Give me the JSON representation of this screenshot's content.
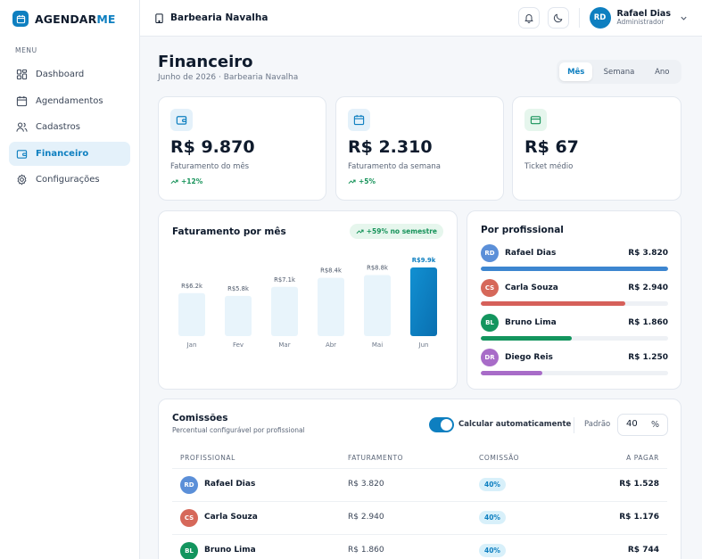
{
  "brand": {
    "name_prefix": "AGENDAR",
    "name_suffix": "ME",
    "color": "#0e7fc0"
  },
  "sidebar": {
    "menu_label": "MENU",
    "items": [
      {
        "label": "Dashboard",
        "icon": "grid-icon"
      },
      {
        "label": "Agendamentos",
        "icon": "calendar-icon"
      },
      {
        "label": "Cadastros",
        "icon": "users-icon"
      },
      {
        "label": "Financeiro",
        "icon": "wallet-icon",
        "active": true
      },
      {
        "label": "Configurações",
        "icon": "gear-icon"
      }
    ]
  },
  "topbar": {
    "shop": "Barbearia Navalha",
    "user": {
      "initials": "RD",
      "name": "Rafael Dias",
      "role": "Administrador"
    }
  },
  "page": {
    "title": "Financeiro",
    "subtitle": "Junho de 2026 · Barbearia Navalha",
    "periods": [
      "Mês",
      "Semana",
      "Ano"
    ],
    "active_period": "Mês"
  },
  "kpis": [
    {
      "value": "R$ 9.870",
      "label": "Faturamento do mês",
      "delta": "+12%",
      "icon": "wallet-icon",
      "icon_bg": "#e4f1fa",
      "icon_color": "#0e7fc0"
    },
    {
      "value": "R$ 2.310",
      "label": "Faturamento da semana",
      "delta": "+5%",
      "icon": "calendar-icon",
      "icon_bg": "#e4f1fa",
      "icon_color": "#0e7fc0"
    },
    {
      "value": "R$ 67",
      "label": "Ticket médio",
      "delta": "",
      "icon": "credit-card-icon",
      "icon_bg": "#e6f6ed",
      "icon_color": "#17935a"
    }
  ],
  "monthly": {
    "title": "Faturamento por mês",
    "badge": "+59% no semestre"
  },
  "chart_data": {
    "type": "bar",
    "categories": [
      "Jan",
      "Fev",
      "Mar",
      "Abr",
      "Mai",
      "Jun"
    ],
    "values": [
      6.2,
      5.8,
      7.1,
      8.4,
      8.8,
      9.9
    ],
    "labels": [
      "R$6.2k",
      "R$5.8k",
      "R$7.1k",
      "R$8.4k",
      "R$8.8k",
      "R$9.9k"
    ],
    "ylim": [
      0,
      9.9
    ],
    "highlight_index": 5,
    "bar_color": "#e8f4fb",
    "highlight_color": "#0e7fc0"
  },
  "by_professional": {
    "title": "Por profissional",
    "items": [
      {
        "initials": "RD",
        "name": "Rafael Dias",
        "value": "R$ 3.820",
        "amount": 3820,
        "color": "#3d86d0",
        "avatar_color": "#5b8fd8"
      },
      {
        "initials": "CS",
        "name": "Carla Souza",
        "value": "R$ 2.940",
        "amount": 2940,
        "color": "#d6605a",
        "avatar_color": "#d6685a"
      },
      {
        "initials": "BL",
        "name": "Bruno Lima",
        "value": "R$ 1.860",
        "amount": 1860,
        "color": "#13955e",
        "avatar_color": "#13955e"
      },
      {
        "initials": "DR",
        "name": "Diego Reis",
        "value": "R$ 1.250",
        "amount": 1250,
        "color": "#a86cc8",
        "avatar_color": "#a86cc8"
      }
    ],
    "max_amount": 3820
  },
  "commissions": {
    "title": "Comissões",
    "subtitle": "Percentual configurável por profissional",
    "auto_label": "Calcular automaticamente",
    "auto_enabled": true,
    "default_label": "Padrão",
    "default_value": "40",
    "unit": "%",
    "columns": [
      "PROFISSIONAL",
      "FATURAMENTO",
      "COMISSÃO",
      "A PAGAR"
    ],
    "rows": [
      {
        "initials": "RD",
        "name": "Rafael Dias",
        "revenue": "R$ 3.820",
        "commission": "40%",
        "payout": "R$ 1.528",
        "avatar_color": "#5b8fd8"
      },
      {
        "initials": "CS",
        "name": "Carla Souza",
        "revenue": "R$ 2.940",
        "commission": "40%",
        "payout": "R$ 1.176",
        "avatar_color": "#d6685a"
      },
      {
        "initials": "BL",
        "name": "Bruno Lima",
        "revenue": "R$ 1.860",
        "commission": "40%",
        "payout": "R$ 744",
        "avatar_color": "#13955e"
      }
    ]
  }
}
